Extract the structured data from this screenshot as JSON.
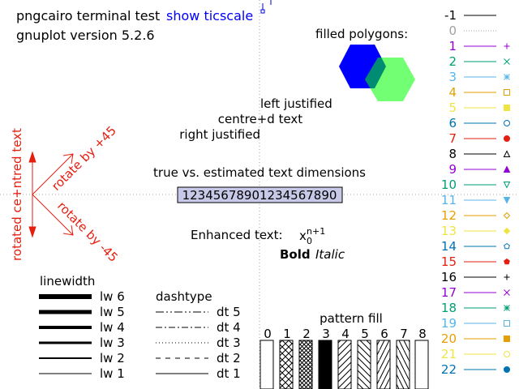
{
  "header": {
    "terminal_text": "pngcairo  terminal test",
    "show_ticscale_link": "show ticscale",
    "version_text": "gnuplot version 5.2.6"
  },
  "justification": {
    "left": "left justified",
    "centre": "centre+d text",
    "right": "right justified"
  },
  "rotation": {
    "rotated_centred": "rotated ce+ntred text",
    "plus45": "rotate by +45",
    "minus45": "rotate by -45"
  },
  "text_dimensions": {
    "title": "true vs. estimated text dimensions",
    "sample": "12345678901234567890"
  },
  "enhanced": {
    "label": "Enhanced text:",
    "base": "x",
    "sub": "0",
    "sup": "n+1",
    "bold": "Bold",
    "italic": "Italic"
  },
  "filled_polygons": {
    "title": "filled polygons:",
    "colors": [
      "#0000ff",
      "#00ff00"
    ]
  },
  "linewidth": {
    "title": "linewidth",
    "labels": [
      "lw 6",
      "lw 5",
      "lw 4",
      "lw 3",
      "lw 2",
      "lw 1"
    ]
  },
  "dashtype": {
    "title": "dashtype",
    "labels": [
      "dt 5",
      "dt 4",
      "dt 3",
      "dt 2",
      "dt 1"
    ]
  },
  "pattern_fill": {
    "title": "pattern fill",
    "labels": [
      "0",
      "1",
      "2",
      "3",
      "4",
      "5",
      "6",
      "7",
      "8"
    ]
  },
  "chart_data": {
    "type": "line",
    "title": "pngcairo  terminal test",
    "point_type_legend": [
      {
        "label": "-1",
        "color": "#000000",
        "marker": "none"
      },
      {
        "label": "0",
        "color": "#a0a0a0",
        "marker": "none"
      },
      {
        "label": "1",
        "color": "#9400d3",
        "marker": "plus"
      },
      {
        "label": "2",
        "color": "#009e73",
        "marker": "cross"
      },
      {
        "label": "3",
        "color": "#56b4e9",
        "marker": "star"
      },
      {
        "label": "4",
        "color": "#e69f00",
        "marker": "box"
      },
      {
        "label": "5",
        "color": "#f0e442",
        "marker": "filled-box"
      },
      {
        "label": "6",
        "color": "#0072b2",
        "marker": "circle"
      },
      {
        "label": "7",
        "color": "#e51e10",
        "marker": "filled-circle"
      },
      {
        "label": "8",
        "color": "#000000",
        "marker": "triangle"
      },
      {
        "label": "9",
        "color": "#9400d3",
        "marker": "filled-triangle"
      },
      {
        "label": "10",
        "color": "#009e73",
        "marker": "inverted-triangle"
      },
      {
        "label": "11",
        "color": "#56b4e9",
        "marker": "filled-inverted-triangle"
      },
      {
        "label": "12",
        "color": "#e69f00",
        "marker": "diamond"
      },
      {
        "label": "13",
        "color": "#f0e442",
        "marker": "filled-diamond"
      },
      {
        "label": "14",
        "color": "#0072b2",
        "marker": "pentagon"
      },
      {
        "label": "15",
        "color": "#e51e10",
        "marker": "filled-pentagon"
      },
      {
        "label": "16",
        "color": "#000000",
        "marker": "plus"
      },
      {
        "label": "17",
        "color": "#9400d3",
        "marker": "cross"
      },
      {
        "label": "18",
        "color": "#009e73",
        "marker": "star"
      },
      {
        "label": "19",
        "color": "#56b4e9",
        "marker": "box"
      },
      {
        "label": "20",
        "color": "#e69f00",
        "marker": "filled-box"
      },
      {
        "label": "21",
        "color": "#f0e442",
        "marker": "circle"
      },
      {
        "label": "22",
        "color": "#0072b2",
        "marker": "filled-circle"
      }
    ],
    "grid": "dotted axes through centre"
  }
}
